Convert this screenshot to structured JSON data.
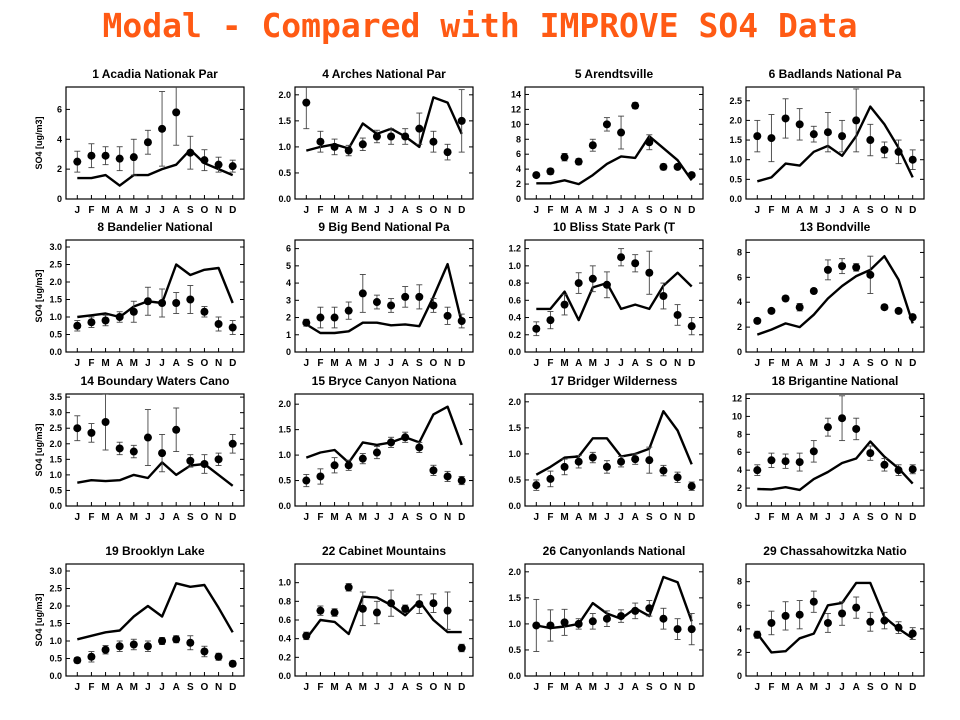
{
  "title": "Modal - Compared with IMPROVE SO4 Data",
  "months": [
    "J",
    "F",
    "M",
    "A",
    "M",
    "J",
    "J",
    "A",
    "S",
    "O",
    "N",
    "D"
  ],
  "ylabel": "SO4  [ug/m3]",
  "colors": {
    "title": "#ff5a14",
    "line": "#000000",
    "point": "#000000"
  },
  "chart_data": [
    {
      "type": "line",
      "title": "1  Acadia  Nationak  Par",
      "ylim": [
        0,
        7.5
      ],
      "yticks": [
        0,
        2,
        4,
        6
      ],
      "ytick_labels": [
        "0",
        "2",
        "4",
        "6"
      ],
      "ylabel": "SO4  [ug/m3]",
      "observed": [
        2.5,
        2.9,
        2.9,
        2.7,
        2.8,
        3.8,
        4.7,
        5.8,
        3.1,
        2.6,
        2.3,
        2.2
      ],
      "err": [
        0.7,
        0.8,
        0.6,
        0.8,
        1.2,
        0.8,
        2.5,
        2.2,
        1.1,
        0.7,
        0.5,
        0.4
      ],
      "model": [
        1.4,
        1.4,
        1.6,
        0.9,
        1.6,
        1.6,
        2.0,
        2.3,
        3.3,
        2.4,
        2.0,
        1.6
      ]
    },
    {
      "type": "line",
      "title": "4  Arches  National  Par",
      "ylim": [
        0,
        2.15
      ],
      "yticks": [
        0,
        0.5,
        1,
        1.5,
        2
      ],
      "ytick_labels": [
        "0.0",
        "0.5",
        "1.0",
        "1.5",
        "2.0"
      ],
      "ylabel": "",
      "observed": [
        1.85,
        1.1,
        1.0,
        0.93,
        1.05,
        1.2,
        1.2,
        1.2,
        1.35,
        1.1,
        0.9,
        1.5
      ],
      "err": [
        0.5,
        0.2,
        0.15,
        0.1,
        0.12,
        0.12,
        0.15,
        0.15,
        0.3,
        0.2,
        0.15,
        0.6
      ],
      "model": [
        0.93,
        1.0,
        1.05,
        0.97,
        1.45,
        1.25,
        1.35,
        1.2,
        1.0,
        1.95,
        1.85,
        1.25
      ]
    },
    {
      "type": "line",
      "title": "5  Arendtsville",
      "ylim": [
        0,
        15
      ],
      "yticks": [
        0,
        2,
        4,
        6,
        8,
        10,
        12,
        14
      ],
      "ytick_labels": [
        "0",
        "2",
        "4",
        "6",
        "8",
        "10",
        "12",
        "14"
      ],
      "ylabel": "",
      "observed": [
        3.2,
        3.7,
        5.6,
        5.0,
        7.2,
        10.0,
        8.9,
        12.5,
        7.6,
        4.3,
        4.3,
        3.2
      ],
      "err": [
        0.3,
        0.4,
        0.5,
        0.4,
        0.8,
        0.9,
        2.2,
        0.4,
        1.0,
        0.4,
        0.3,
        0.3
      ],
      "model": [
        2.1,
        2.1,
        2.5,
        2.0,
        3.2,
        4.7,
        5.7,
        5.5,
        8.4,
        6.8,
        5.2,
        2.5
      ]
    },
    {
      "type": "line",
      "title": "6  Badlands  National  Pa",
      "ylim": [
        0,
        2.85
      ],
      "yticks": [
        0,
        0.5,
        1,
        1.5,
        2,
        2.5
      ],
      "ytick_labels": [
        "0.0",
        "0.5",
        "1.0",
        "1.5",
        "2.0",
        "2.5"
      ],
      "ylabel": "",
      "observed": [
        1.6,
        1.55,
        2.05,
        1.9,
        1.65,
        1.7,
        1.6,
        2.0,
        1.5,
        1.25,
        1.2,
        1.0
      ],
      "err": [
        0.4,
        0.6,
        0.5,
        0.4,
        0.2,
        0.5,
        0.4,
        0.8,
        0.4,
        0.2,
        0.3,
        0.25
      ],
      "model": [
        0.45,
        0.55,
        0.9,
        0.85,
        1.2,
        1.35,
        1.1,
        1.6,
        2.35,
        1.9,
        1.3,
        0.55
      ]
    },
    {
      "type": "line",
      "title": "8  Bandelier  National",
      "ylim": [
        0,
        3.2
      ],
      "yticks": [
        0,
        0.5,
        1,
        1.5,
        2,
        2.5,
        3
      ],
      "ytick_labels": [
        "0.0",
        "0.5",
        "1.0",
        "1.5",
        "2.0",
        "2.5",
        "3.0"
      ],
      "ylabel": "SO4  [ug/m3]",
      "observed": [
        0.75,
        0.85,
        0.9,
        1.0,
        1.15,
        1.45,
        1.4,
        1.4,
        1.5,
        1.15,
        0.8,
        0.7
      ],
      "err": [
        0.15,
        0.15,
        0.15,
        0.15,
        0.3,
        0.4,
        0.4,
        0.3,
        0.4,
        0.15,
        0.2,
        0.2
      ],
      "model": [
        1.0,
        1.05,
        1.1,
        1.0,
        1.3,
        1.45,
        1.4,
        2.5,
        2.2,
        2.35,
        2.4,
        1.4
      ]
    },
    {
      "type": "line",
      "title": "9  Big  Bend  National  Pa",
      "ylim": [
        0,
        6.5
      ],
      "yticks": [
        0,
        1,
        2,
        3,
        4,
        5,
        6
      ],
      "ytick_labels": [
        "0",
        "1",
        "2",
        "3",
        "4",
        "5",
        "6"
      ],
      "ylabel": "",
      "observed": [
        1.7,
        2.0,
        2.0,
        2.4,
        3.4,
        2.9,
        2.7,
        3.2,
        3.2,
        2.7,
        2.1,
        1.8
      ],
      "err": [
        0.2,
        0.6,
        0.6,
        0.5,
        1.1,
        0.4,
        0.4,
        0.6,
        0.7,
        0.4,
        0.5,
        0.4
      ],
      "model": [
        1.6,
        1.1,
        1.1,
        1.2,
        1.7,
        1.7,
        1.55,
        1.6,
        1.5,
        3.2,
        5.1,
        1.7
      ]
    },
    {
      "type": "line",
      "title": "10  Bliss  State  Park  (T",
      "ylim": [
        0,
        1.3
      ],
      "yticks": [
        0,
        0.2,
        0.4,
        0.6,
        0.8,
        1,
        1.2
      ],
      "ytick_labels": [
        "0.0",
        "0.2",
        "0.4",
        "0.6",
        "0.8",
        "1.0",
        "1.2"
      ],
      "ylabel": "",
      "observed": [
        0.27,
        0.37,
        0.55,
        0.8,
        0.85,
        0.78,
        1.1,
        1.03,
        0.92,
        0.65,
        0.43,
        0.3
      ],
      "err": [
        0.08,
        0.1,
        0.12,
        0.12,
        0.15,
        0.15,
        0.1,
        0.1,
        0.25,
        0.15,
        0.12,
        0.1
      ],
      "model": [
        0.5,
        0.5,
        0.7,
        0.37,
        0.75,
        0.8,
        0.5,
        0.55,
        0.5,
        0.77,
        0.92,
        0.76
      ]
    },
    {
      "type": "line",
      "title": "13  Bondville",
      "ylim": [
        0,
        9
      ],
      "yticks": [
        0,
        2,
        4,
        6,
        8
      ],
      "ytick_labels": [
        "0",
        "2",
        "4",
        "6",
        "8"
      ],
      "ylabel": "",
      "observed": [
        2.5,
        3.3,
        4.3,
        3.6,
        4.9,
        6.6,
        6.9,
        6.8,
        6.2,
        3.6,
        3.3,
        2.8
      ],
      "err": [
        0.2,
        0.2,
        0.2,
        0.3,
        0.2,
        0.8,
        0.6,
        0.3,
        1.5,
        0.2,
        0.2,
        0.2
      ],
      "model": [
        1.4,
        1.8,
        2.3,
        2.0,
        3.0,
        4.3,
        5.3,
        6.1,
        6.6,
        7.7,
        5.8,
        2.3
      ]
    },
    {
      "type": "line",
      "title": "14  Boundary  Waters  Cano",
      "ylim": [
        0,
        3.6
      ],
      "yticks": [
        0,
        0.5,
        1,
        1.5,
        2,
        2.5,
        3,
        3.5
      ],
      "ytick_labels": [
        "0.0",
        "0.5",
        "1.0",
        "1.5",
        "2.0",
        "2.5",
        "3.0",
        "3.5"
      ],
      "ylabel": "SO4  [ug/m3]",
      "observed": [
        2.5,
        2.35,
        2.7,
        1.85,
        1.75,
        2.2,
        1.7,
        2.45,
        1.45,
        1.35,
        1.5,
        2.0
      ],
      "err": [
        0.4,
        0.3,
        0.9,
        0.2,
        0.2,
        0.9,
        0.6,
        0.7,
        0.2,
        0.3,
        0.2,
        0.3
      ],
      "model": [
        0.75,
        0.83,
        0.8,
        0.83,
        1.0,
        0.9,
        1.4,
        1.0,
        1.3,
        1.35,
        1.0,
        0.65
      ]
    },
    {
      "type": "line",
      "title": "15  Bryce  Canyon  Nationa",
      "ylim": [
        0,
        2.2
      ],
      "yticks": [
        0,
        0.5,
        1,
        1.5,
        2
      ],
      "ytick_labels": [
        "0.0",
        "0.5",
        "1.0",
        "1.5",
        "2.0"
      ],
      "ylabel": "",
      "observed": [
        0.5,
        0.58,
        0.8,
        0.8,
        0.93,
        1.05,
        1.25,
        1.35,
        1.15,
        0.7,
        0.58,
        0.5
      ],
      "err": [
        0.12,
        0.15,
        0.15,
        0.1,
        0.1,
        0.12,
        0.1,
        0.1,
        0.1,
        0.1,
        0.1,
        0.08
      ],
      "model": [
        0.95,
        1.05,
        1.1,
        0.85,
        1.25,
        1.2,
        1.25,
        1.35,
        1.25,
        1.8,
        1.95,
        1.2
      ]
    },
    {
      "type": "line",
      "title": "17  Bridger  Wilderness",
      "ylim": [
        0,
        2.15
      ],
      "yticks": [
        0,
        0.5,
        1,
        1.5,
        2
      ],
      "ytick_labels": [
        "0.0",
        "0.5",
        "1.0",
        "1.5",
        "2.0"
      ],
      "ylabel": "",
      "observed": [
        0.4,
        0.52,
        0.75,
        0.85,
        0.93,
        0.75,
        0.85,
        0.9,
        0.88,
        0.68,
        0.55,
        0.38
      ],
      "err": [
        0.1,
        0.15,
        0.15,
        0.12,
        0.1,
        0.12,
        0.1,
        0.1,
        0.25,
        0.1,
        0.1,
        0.08
      ],
      "model": [
        0.6,
        0.75,
        0.93,
        0.95,
        1.3,
        1.3,
        0.95,
        1.0,
        1.1,
        1.82,
        1.45,
        0.8
      ]
    },
    {
      "type": "line",
      "title": "18  Brigantine  National",
      "ylim": [
        0,
        12.5
      ],
      "yticks": [
        0,
        2,
        4,
        6,
        8,
        10,
        12
      ],
      "ytick_labels": [
        "0",
        "2",
        "4",
        "6",
        "8",
        "10",
        "12"
      ],
      "ylabel": "",
      "observed": [
        4.0,
        5.1,
        5.0,
        4.9,
        6.1,
        8.8,
        9.8,
        8.6,
        5.9,
        4.6,
        4.0,
        4.1
      ],
      "err": [
        0.6,
        0.8,
        0.8,
        1.0,
        1.2,
        1.0,
        2.5,
        1.2,
        0.8,
        0.7,
        0.6,
        0.5
      ],
      "model": [
        1.9,
        1.85,
        2.1,
        1.8,
        3.0,
        3.8,
        4.8,
        5.3,
        7.2,
        5.5,
        4.2,
        2.5
      ]
    },
    {
      "type": "line",
      "title": "19  Brooklyn  Lake",
      "ylim": [
        0,
        3.2
      ],
      "yticks": [
        0,
        0.5,
        1,
        1.5,
        2,
        2.5,
        3
      ],
      "ytick_labels": [
        "0.0",
        "0.5",
        "1.0",
        "1.5",
        "2.0",
        "2.5",
        "3.0"
      ],
      "ylabel": "SO4  [ug/m3]",
      "observed": [
        0.45,
        0.55,
        0.75,
        0.85,
        0.9,
        0.85,
        1.0,
        1.05,
        0.95,
        0.7,
        0.55,
        0.35
      ],
      "err": [
        0.08,
        0.15,
        0.12,
        0.15,
        0.15,
        0.15,
        0.1,
        0.1,
        0.2,
        0.15,
        0.1,
        0.08
      ],
      "model": [
        1.05,
        1.15,
        1.25,
        1.3,
        1.7,
        2.0,
        1.7,
        2.65,
        2.55,
        2.6,
        1.95,
        1.25
      ]
    },
    {
      "type": "line",
      "title": "22  Cabinet  Mountains",
      "ylim": [
        0,
        1.2
      ],
      "yticks": [
        0,
        0.2,
        0.4,
        0.6,
        0.8,
        1
      ],
      "ytick_labels": [
        "0.0",
        "0.2",
        "0.4",
        "0.6",
        "0.8",
        "1.0"
      ],
      "ylabel": "",
      "observed": [
        0.43,
        0.7,
        0.68,
        0.95,
        0.72,
        0.68,
        0.78,
        0.72,
        0.77,
        0.78,
        0.7,
        0.3
      ],
      "err": [
        0.04,
        0.05,
        0.04,
        0.04,
        0.18,
        0.12,
        0.14,
        0.04,
        0.1,
        0.1,
        0.2,
        0.04
      ],
      "model": [
        0.4,
        0.6,
        0.58,
        0.45,
        0.85,
        0.84,
        0.76,
        0.65,
        0.8,
        0.6,
        0.47,
        0.47
      ]
    },
    {
      "type": "line",
      "title": "26  Canyonlands  National",
      "ylim": [
        0,
        2.15
      ],
      "yticks": [
        0,
        0.5,
        1,
        1.5,
        2
      ],
      "ytick_labels": [
        "0.0",
        "0.5",
        "1.0",
        "1.5",
        "2.0"
      ],
      "ylabel": "",
      "observed": [
        0.97,
        0.97,
        1.03,
        1.0,
        1.05,
        1.1,
        1.15,
        1.25,
        1.3,
        1.1,
        0.9,
        0.9
      ],
      "err": [
        0.5,
        0.3,
        0.25,
        0.1,
        0.15,
        0.15,
        0.12,
        0.15,
        0.15,
        0.2,
        0.2,
        0.3
      ],
      "model": [
        0.97,
        0.92,
        0.95,
        1.0,
        1.4,
        1.2,
        1.1,
        1.3,
        1.15,
        1.9,
        1.8,
        1.05
      ]
    },
    {
      "type": "line",
      "title": "29  Chassahowitzka  Natio",
      "ylim": [
        0,
        9.5
      ],
      "yticks": [
        0,
        2,
        4,
        6,
        8
      ],
      "ytick_labels": [
        "0",
        "2",
        "4",
        "6",
        "8"
      ],
      "ylabel": "",
      "observed": [
        3.5,
        4.5,
        5.1,
        5.2,
        6.3,
        4.5,
        5.3,
        5.8,
        4.6,
        4.7,
        4.1,
        3.6
      ],
      "err": [
        0.3,
        1.0,
        1.2,
        1.2,
        0.9,
        0.8,
        1.0,
        0.9,
        0.8,
        0.7,
        0.5,
        0.5
      ],
      "model": [
        3.6,
        2.0,
        2.1,
        3.2,
        3.6,
        6.0,
        6.2,
        7.9,
        7.9,
        5.0,
        4.0,
        3.2
      ]
    }
  ]
}
